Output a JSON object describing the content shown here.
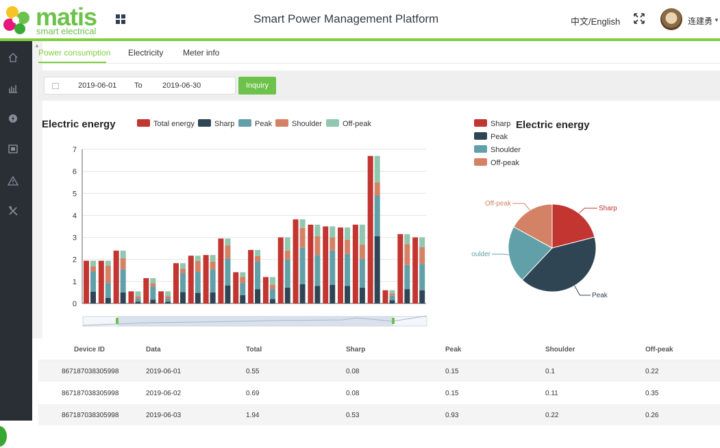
{
  "header": {
    "logo_text": "matis",
    "logo_sub": "smart electrical",
    "title": "Smart Power Management Platform",
    "language": "中文/English",
    "username": "连建勇"
  },
  "tabs": [
    {
      "label": "Power consumption"
    },
    {
      "label": "Electricity"
    },
    {
      "label": "Meter info"
    }
  ],
  "filter": {
    "start_date": "2019-06-01",
    "to_label": "To",
    "end_date": "2019-06-30",
    "inquiry_label": "Inquiry"
  },
  "bar_chart": {
    "title": "Electric energy",
    "legend": [
      "Total energy",
      "Sharp",
      "Peak",
      "Shoulder",
      "Off-peak"
    ]
  },
  "pie_chart": {
    "title": "Electric energy",
    "legend": [
      "Sharp",
      "Peak",
      "Shoulder",
      "Off-peak"
    ],
    "labels": {
      "sharp": "Sharp",
      "peak": "Peak",
      "shoulder": "oulder",
      "offpeak": "Off-peak"
    }
  },
  "colors": {
    "total": "#c23531",
    "sharp": "#2f4554",
    "peak": "#61a0a8",
    "shoulder": "#d48265",
    "offpeak": "#91c7ae",
    "accent": "#7fcf3c"
  },
  "chart_data": [
    {
      "type": "bar",
      "title": "Electric energy",
      "ylim": [
        0,
        7
      ],
      "yticks": [
        "0",
        "1",
        "2",
        "3",
        "4",
        "5",
        "6",
        "7"
      ],
      "series": [
        {
          "name": "Total energy",
          "values": [
            1.94,
            1.94,
            2.4,
            0.55,
            1.15,
            0.55,
            1.83,
            2.17,
            2.2,
            2.95,
            1.42,
            2.43,
            1.2,
            3.0,
            3.82,
            3.58,
            3.5,
            3.45,
            3.58,
            6.7,
            0.6,
            3.15,
            3.0
          ]
        },
        {
          "name": "Sharp",
          "values": [
            0.53,
            0.25,
            0.5,
            0.08,
            0.17,
            0.08,
            0.52,
            0.48,
            0.5,
            0.82,
            0.38,
            0.65,
            0.2,
            0.72,
            0.88,
            0.8,
            0.85,
            0.8,
            0.72,
            3.05,
            0.15,
            0.65,
            0.6
          ]
        },
        {
          "name": "Peak",
          "values": [
            0.93,
            0.68,
            1.05,
            0.15,
            0.6,
            0.15,
            0.85,
            0.95,
            1.05,
            1.22,
            0.55,
            1.25,
            0.45,
            1.28,
            1.65,
            1.4,
            1.55,
            1.45,
            1.3,
            1.85,
            0.2,
            1.1,
            1.2
          ]
        },
        {
          "name": "Shoulder",
          "values": [
            0.22,
            0.78,
            0.5,
            0.1,
            0.15,
            0.11,
            0.2,
            0.5,
            0.35,
            0.6,
            0.28,
            0.25,
            0.2,
            0.4,
            0.9,
            0.85,
            0.6,
            0.65,
            0.65,
            0.6,
            0.1,
            0.95,
            0.75
          ]
        },
        {
          "name": "Off-peak",
          "values": [
            0.26,
            0.23,
            0.35,
            0.22,
            0.23,
            0.21,
            0.26,
            0.24,
            0.3,
            0.31,
            0.21,
            0.28,
            0.35,
            0.6,
            0.39,
            0.53,
            0.5,
            0.55,
            0.91,
            1.2,
            0.15,
            0.45,
            0.45
          ]
        }
      ]
    },
    {
      "type": "pie",
      "title": "Electric energy",
      "categories": [
        "Sharp",
        "Peak",
        "Shoulder",
        "Off-peak"
      ],
      "values": [
        21,
        41,
        21,
        17
      ]
    }
  ],
  "table": {
    "headers": [
      "Device ID",
      "Data",
      "Total",
      "Sharp",
      "Peak",
      "Shoulder",
      "Off-peak"
    ],
    "rows": [
      [
        "867187038305998",
        "2019-06-01",
        "0.55",
        "0.08",
        "0.15",
        "0.1",
        "0.22"
      ],
      [
        "867187038305998",
        "2019-06-02",
        "0.69",
        "0.08",
        "0.15",
        "0.11",
        "0.35"
      ],
      [
        "867187038305998",
        "2019-06-03",
        "1.94",
        "0.53",
        "0.93",
        "0.22",
        "0.26"
      ]
    ]
  }
}
